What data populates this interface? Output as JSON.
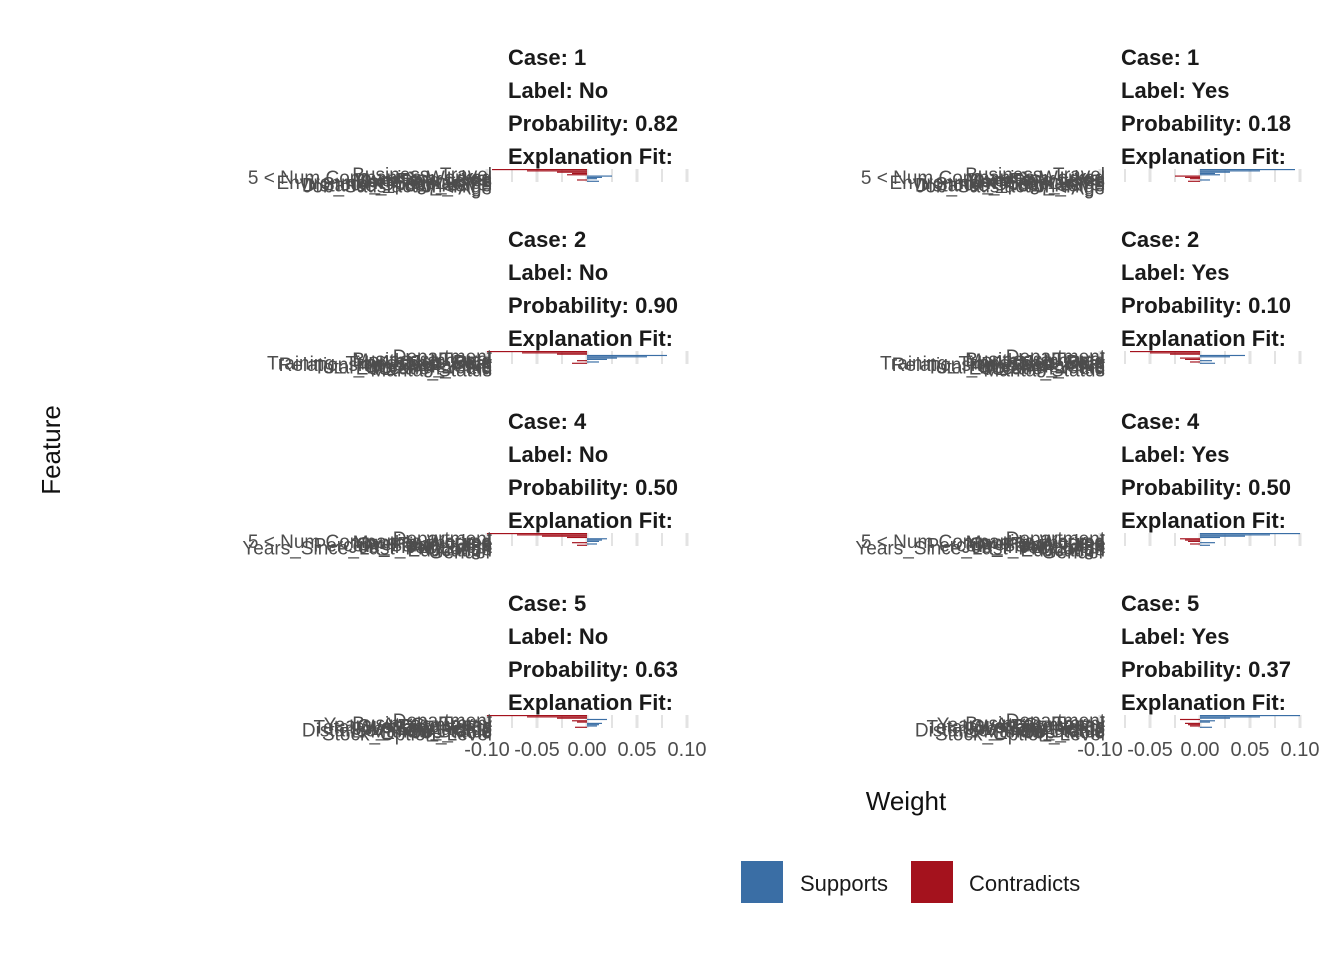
{
  "chart_data": {
    "type": "bar",
    "orientation": "horizontal",
    "xlabel": "Weight",
    "ylabel": "Feature",
    "xlim": [
      -0.1,
      0.1
    ],
    "x_ticks": [
      "-0.10",
      "-0.05",
      "0.00",
      "0.05",
      "0.10"
    ],
    "legend": {
      "placement": "bottom",
      "entries": [
        {
          "name": "Supports",
          "color": "#3a6ea5"
        },
        {
          "name": "Contradicts",
          "color": "#a4121d"
        }
      ]
    },
    "grid": true,
    "panels": [
      {
        "case": "1",
        "label": "No",
        "probability": "0.82",
        "strip": [
          "Case: 1",
          "Label: No",
          "Probability: 0.82",
          "Explanation Fit:"
        ],
        "features": [
          {
            "name": "Business_Travel",
            "weight": -0.095,
            "effect": "Contradicts"
          },
          {
            "name": "5 < Num Companies Worked",
            "weight": -0.06,
            "effect": "Contradicts"
          },
          {
            "name": "OverTime = Yes",
            "weight": -0.03,
            "effect": "Contradicts"
          },
          {
            "name": "Job_Level",
            "weight": -0.015,
            "effect": "Contradicts"
          },
          {
            "name": "Monthly_Income",
            "weight": -0.02,
            "effect": "Contradicts"
          },
          {
            "name": "Stock_Option_Level",
            "weight": 0.025,
            "effect": "Supports"
          },
          {
            "name": "Environment_Satisfaction",
            "weight": 0.015,
            "effect": "Supports"
          },
          {
            "name": "Distance_From_Home",
            "weight": 0.01,
            "effect": "Supports"
          },
          {
            "name": "57 < Age",
            "weight": -0.01,
            "effect": "Contradicts"
          },
          {
            "name": "Job_Satisfaction_High",
            "weight": 0.012,
            "effect": "Supports"
          }
        ]
      },
      {
        "case": "1",
        "label": "Yes",
        "probability": "0.18",
        "strip": [
          "Case: 1",
          "Label: Yes",
          "Probability: 0.18",
          "Explanation Fit:"
        ],
        "features": [
          {
            "name": "Business_Travel",
            "weight": 0.095,
            "effect": "Supports"
          },
          {
            "name": "5 < Num Companies Worked",
            "weight": 0.06,
            "effect": "Supports"
          },
          {
            "name": "OverTime = Yes",
            "weight": 0.03,
            "effect": "Supports"
          },
          {
            "name": "Job_Level",
            "weight": 0.015,
            "effect": "Supports"
          },
          {
            "name": "Monthly_Income",
            "weight": 0.02,
            "effect": "Supports"
          },
          {
            "name": "Stock_Option_Level",
            "weight": -0.025,
            "effect": "Contradicts"
          },
          {
            "name": "Environment_Satisfaction",
            "weight": -0.015,
            "effect": "Contradicts"
          },
          {
            "name": "Distance_From_Home",
            "weight": -0.01,
            "effect": "Contradicts"
          },
          {
            "name": "57 < Age",
            "weight": 0.01,
            "effect": "Supports"
          },
          {
            "name": "Job_Satisfaction_High",
            "weight": -0.012,
            "effect": "Contradicts"
          }
        ]
      },
      {
        "case": "2",
        "label": "No",
        "probability": "0.90",
        "strip": [
          "Case: 2",
          "Label: No",
          "Probability: 0.90",
          "Explanation Fit:"
        ],
        "features": [
          {
            "name": "Department",
            "weight": -0.1,
            "effect": "Contradicts"
          },
          {
            "name": "Business_Travel",
            "weight": -0.065,
            "effect": "Contradicts"
          },
          {
            "name": "4 < Job_Role",
            "weight": -0.03,
            "effect": "Contradicts"
          },
          {
            "name": "Monthly_Income",
            "weight": 0.08,
            "effect": "Supports"
          },
          {
            "name": "Training_Times_Last_Year",
            "weight": 0.06,
            "effect": "Supports"
          },
          {
            "name": "OverTime = No",
            "weight": 0.03,
            "effect": "Supports"
          },
          {
            "name": "Relationship_Satisfaction",
            "weight": 0.02,
            "effect": "Supports"
          },
          {
            "name": "Total_Working_Years",
            "weight": -0.01,
            "effect": "Contradicts"
          },
          {
            "name": "Marital_Status",
            "weight": 0.012,
            "effect": "Supports"
          },
          {
            "name": "Education_Field",
            "weight": -0.015,
            "effect": "Contradicts"
          }
        ]
      },
      {
        "case": "2",
        "label": "Yes",
        "probability": "0.10",
        "strip": [
          "Case: 2",
          "Label: Yes",
          "Probability: 0.10",
          "Explanation Fit:"
        ],
        "features": [
          {
            "name": "Department",
            "weight": -0.07,
            "effect": "Contradicts"
          },
          {
            "name": "Business_Travel",
            "weight": -0.05,
            "effect": "Contradicts"
          },
          {
            "name": "4 < Job_Role",
            "weight": -0.03,
            "effect": "Contradicts"
          },
          {
            "name": "Monthly_Income",
            "weight": 0.045,
            "effect": "Supports"
          },
          {
            "name": "Training_Times_Last_Year",
            "weight": 0.03,
            "effect": "Supports"
          },
          {
            "name": "OverTime = No",
            "weight": -0.02,
            "effect": "Contradicts"
          },
          {
            "name": "Relationship_Satisfaction",
            "weight": -0.015,
            "effect": "Contradicts"
          },
          {
            "name": "Total_Working_Years",
            "weight": 0.012,
            "effect": "Supports"
          },
          {
            "name": "Marital_Status",
            "weight": -0.01,
            "effect": "Contradicts"
          },
          {
            "name": "Education_Field",
            "weight": 0.015,
            "effect": "Supports"
          }
        ]
      },
      {
        "case": "4",
        "label": "No",
        "probability": "0.50",
        "strip": [
          "Case: 4",
          "Label: No",
          "Probability: 0.50",
          "Explanation Fit:"
        ],
        "features": [
          {
            "name": "Department",
            "weight": -0.1,
            "effect": "Contradicts"
          },
          {
            "name": "5 < Num Companies Worked",
            "weight": -0.07,
            "effect": "Contradicts"
          },
          {
            "name": "OverTime = Yes",
            "weight": -0.045,
            "effect": "Contradicts"
          },
          {
            "name": "Monthly_Income",
            "weight": -0.02,
            "effect": "Contradicts"
          },
          {
            "name": "Percent_Salary_Hike",
            "weight": 0.02,
            "effect": "Supports"
          },
          {
            "name": "Years_Since_Last_Promotion",
            "weight": 0.015,
            "effect": "Supports"
          },
          {
            "name": "Job_Involvement",
            "weight": 0.012,
            "effect": "Supports"
          },
          {
            "name": "Age",
            "weight": -0.015,
            "effect": "Contradicts"
          },
          {
            "name": "Gender",
            "weight": 0.01,
            "effect": "Supports"
          },
          {
            "name": "Education",
            "weight": -0.01,
            "effect": "Contradicts"
          }
        ]
      },
      {
        "case": "4",
        "label": "Yes",
        "probability": "0.50",
        "strip": [
          "Case: 4",
          "Label: Yes",
          "Probability: 0.50",
          "Explanation Fit:"
        ],
        "features": [
          {
            "name": "Department",
            "weight": 0.1,
            "effect": "Supports"
          },
          {
            "name": "5 < Num Companies Worked",
            "weight": 0.07,
            "effect": "Supports"
          },
          {
            "name": "OverTime = Yes",
            "weight": 0.045,
            "effect": "Supports"
          },
          {
            "name": "Monthly_Income",
            "weight": 0.02,
            "effect": "Supports"
          },
          {
            "name": "Percent_Salary_Hike",
            "weight": -0.02,
            "effect": "Contradicts"
          },
          {
            "name": "Years_Since_Last_Promotion",
            "weight": -0.015,
            "effect": "Contradicts"
          },
          {
            "name": "Job_Involvement",
            "weight": -0.012,
            "effect": "Contradicts"
          },
          {
            "name": "Age",
            "weight": 0.015,
            "effect": "Supports"
          },
          {
            "name": "Gender",
            "weight": -0.01,
            "effect": "Contradicts"
          },
          {
            "name": "Education",
            "weight": 0.01,
            "effect": "Supports"
          }
        ]
      },
      {
        "case": "5",
        "label": "No",
        "probability": "0.63",
        "strip": [
          "Case: 5",
          "Label: No",
          "Probability: 0.63",
          "Explanation Fit:"
        ],
        "features": [
          {
            "name": "Department",
            "weight": -0.1,
            "effect": "Contradicts"
          },
          {
            "name": "Business_Travel",
            "weight": -0.06,
            "effect": "Contradicts"
          },
          {
            "name": "OverTime = Yes",
            "weight": -0.03,
            "effect": "Contradicts"
          },
          {
            "name": "Years_At_Company",
            "weight": 0.02,
            "effect": "Supports"
          },
          {
            "name": "Total_Working_Years",
            "weight": -0.015,
            "effect": "Contradicts"
          },
          {
            "name": "Distance_From_Home",
            "weight": -0.01,
            "effect": "Contradicts"
          },
          {
            "name": "Job_Satisfaction",
            "weight": 0.015,
            "effect": "Supports"
          },
          {
            "name": "Marital_Status",
            "weight": 0.012,
            "effect": "Supports"
          },
          {
            "name": "Stock_Option_Level",
            "weight": 0.01,
            "effect": "Supports"
          },
          {
            "name": "Job_Role",
            "weight": -0.012,
            "effect": "Contradicts"
          }
        ]
      },
      {
        "case": "5",
        "label": "Yes",
        "probability": "0.37",
        "strip": [
          "Case: 5",
          "Label: Yes",
          "Probability: 0.37",
          "Explanation Fit:"
        ],
        "features": [
          {
            "name": "Department",
            "weight": 0.1,
            "effect": "Supports"
          },
          {
            "name": "Business_Travel",
            "weight": 0.06,
            "effect": "Supports"
          },
          {
            "name": "OverTime = Yes",
            "weight": 0.03,
            "effect": "Supports"
          },
          {
            "name": "Years_At_Company",
            "weight": -0.02,
            "effect": "Contradicts"
          },
          {
            "name": "Total_Working_Years",
            "weight": 0.015,
            "effect": "Supports"
          },
          {
            "name": "Distance_From_Home",
            "weight": 0.01,
            "effect": "Supports"
          },
          {
            "name": "Job_Satisfaction",
            "weight": -0.015,
            "effect": "Contradicts"
          },
          {
            "name": "Marital_Status",
            "weight": -0.012,
            "effect": "Contradicts"
          },
          {
            "name": "Stock_Option_Level",
            "weight": -0.01,
            "effect": "Contradicts"
          },
          {
            "name": "Job_Role",
            "weight": 0.012,
            "effect": "Supports"
          }
        ]
      }
    ]
  }
}
